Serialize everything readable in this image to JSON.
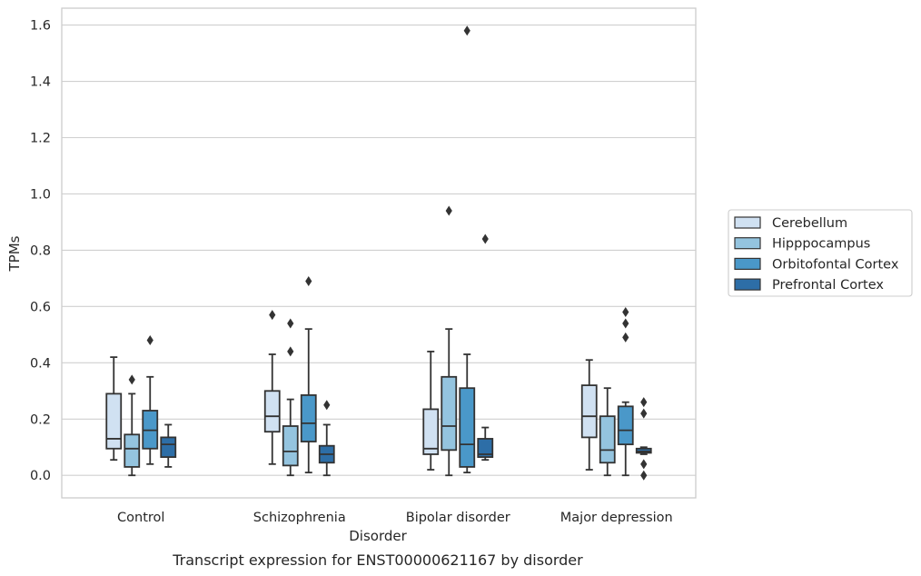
{
  "caption": "Transcript expression for ENST00000621167 by disorder",
  "chart_data": {
    "type": "box",
    "xlabel": "Disorder",
    "ylabel": "TPMs",
    "ylim": [
      -0.08,
      1.66
    ],
    "yticks": [
      "0.0",
      "0.2",
      "0.4",
      "0.6",
      "0.8",
      "1.0",
      "1.2",
      "1.4",
      "1.6"
    ],
    "grid": "horizontal",
    "legend_position": "right",
    "categories": [
      "Control",
      "Schizophrenia",
      "Bipolar disorder",
      "Major depression"
    ],
    "series": [
      {
        "name": "Cerebellum",
        "color": "#d0e1f2",
        "boxes": [
          {
            "q1": 0.095,
            "median": 0.13,
            "q3": 0.29,
            "low": 0.055,
            "high": 0.42,
            "outliers": []
          },
          {
            "q1": 0.155,
            "median": 0.21,
            "q3": 0.3,
            "low": 0.04,
            "high": 0.43,
            "outliers": [
              0.57
            ]
          },
          {
            "q1": 0.075,
            "median": 0.095,
            "q3": 0.235,
            "low": 0.02,
            "high": 0.44,
            "outliers": []
          },
          {
            "q1": 0.135,
            "median": 0.21,
            "q3": 0.32,
            "low": 0.02,
            "high": 0.41,
            "outliers": []
          }
        ]
      },
      {
        "name": "Hipppocampus",
        "color": "#94c4df",
        "boxes": [
          {
            "q1": 0.03,
            "median": 0.095,
            "q3": 0.145,
            "low": 0.0,
            "high": 0.29,
            "outliers": [
              0.34
            ]
          },
          {
            "q1": 0.035,
            "median": 0.085,
            "q3": 0.175,
            "low": 0.0,
            "high": 0.27,
            "outliers": [
              0.44,
              0.54
            ]
          },
          {
            "q1": 0.09,
            "median": 0.175,
            "q3": 0.35,
            "low": 0.0,
            "high": 0.52,
            "outliers": [
              0.94
            ]
          },
          {
            "q1": 0.045,
            "median": 0.09,
            "q3": 0.21,
            "low": 0.0,
            "high": 0.31,
            "outliers": []
          }
        ]
      },
      {
        "name": "Orbitofontal Cortex",
        "color": "#4a98c9",
        "boxes": [
          {
            "q1": 0.095,
            "median": 0.16,
            "q3": 0.23,
            "low": 0.04,
            "high": 0.35,
            "outliers": [
              0.48
            ]
          },
          {
            "q1": 0.12,
            "median": 0.185,
            "q3": 0.285,
            "low": 0.01,
            "high": 0.52,
            "outliers": [
              0.69
            ]
          },
          {
            "q1": 0.03,
            "median": 0.11,
            "q3": 0.31,
            "low": 0.01,
            "high": 0.43,
            "outliers": [
              1.58
            ]
          },
          {
            "q1": 0.11,
            "median": 0.16,
            "q3": 0.245,
            "low": 0.0,
            "high": 0.26,
            "outliers": [
              0.49,
              0.54,
              0.58
            ]
          }
        ]
      },
      {
        "name": "Prefrontal Cortex",
        "color": "#2d6ea7",
        "boxes": [
          {
            "q1": 0.065,
            "median": 0.11,
            "q3": 0.135,
            "low": 0.03,
            "high": 0.18,
            "outliers": []
          },
          {
            "q1": 0.045,
            "median": 0.075,
            "q3": 0.105,
            "low": 0.0,
            "high": 0.18,
            "outliers": [
              0.25
            ]
          },
          {
            "q1": 0.065,
            "median": 0.075,
            "q3": 0.13,
            "low": 0.055,
            "high": 0.17,
            "outliers": [
              0.84
            ]
          },
          {
            "q1": 0.08,
            "median": 0.085,
            "q3": 0.095,
            "low": 0.075,
            "high": 0.1,
            "outliers": [
              0.0,
              0.04,
              0.22,
              0.26
            ]
          }
        ]
      }
    ]
  }
}
